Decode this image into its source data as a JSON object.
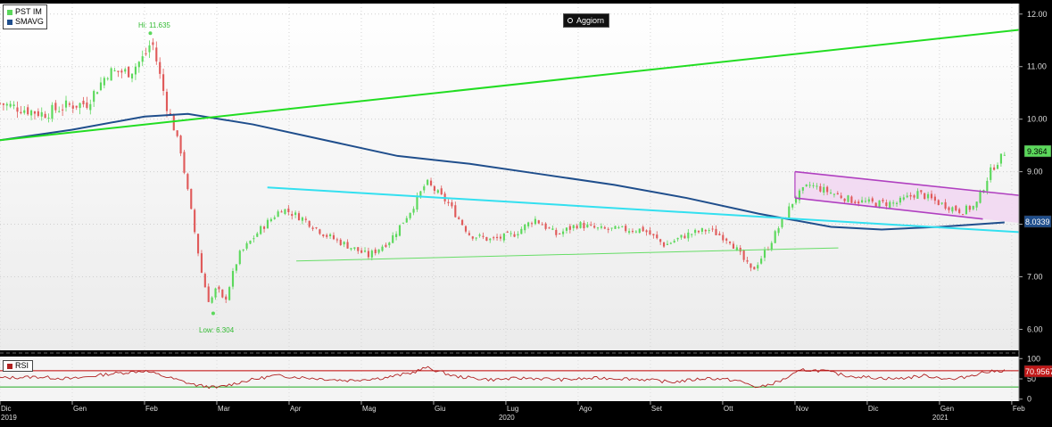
{
  "colors": {
    "up": "#5bd85b",
    "down": "#e05a5a",
    "sma": "#1f4e8c",
    "trend_green": "#22dd22",
    "cyan": "#33e0f0",
    "support": "#66dd66",
    "channel": "#b040c0",
    "channel_fill": "#f1d6f1",
    "rsi": "#b02020",
    "rsi_upper": "#c00000",
    "rsi_lower": "#22aa22"
  },
  "legend": {
    "price_label": "PST IM",
    "sma_label": "SMAVG",
    "rsi_label": "RSI"
  },
  "update_button": {
    "label": "Aggiorn",
    "icon": "circle-icon"
  },
  "annotations": {
    "hi": "Hi: 11.635",
    "low": "Low: 6.304"
  },
  "price_badge": "9.364",
  "sma_badge": "8.0339",
  "rsi_badge": "70.9567",
  "x_axis": {
    "months": [
      {
        "label": "Dic",
        "year": "2019"
      },
      {
        "label": "Gen",
        "year": ""
      },
      {
        "label": "Feb",
        "year": ""
      },
      {
        "label": "Mar",
        "year": ""
      },
      {
        "label": "Apr",
        "year": ""
      },
      {
        "label": "Mag",
        "year": ""
      },
      {
        "label": "Giu",
        "year": ""
      },
      {
        "label": "Lug",
        "year": "2020"
      },
      {
        "label": "Ago",
        "year": ""
      },
      {
        "label": "Set",
        "year": ""
      },
      {
        "label": "Ott",
        "year": ""
      },
      {
        "label": "Nov",
        "year": ""
      },
      {
        "label": "Dic",
        "year": ""
      },
      {
        "label": "Gen",
        "year": "2021"
      },
      {
        "label": "Feb",
        "year": ""
      }
    ]
  },
  "chart_data": [
    {
      "type": "candlestick",
      "title": "",
      "x_unit": "month index (0 = Dic 2019, 14 = Feb 2021)",
      "xlim": [
        0,
        14.1
      ],
      "ylim": [
        5.6,
        12.2
      ],
      "y_ticks": [
        "12.00",
        "11.00",
        "10.00",
        "9.00",
        "8.00",
        "7.00",
        "6.00"
      ],
      "grid": true,
      "legend_position": "top-left",
      "series": [
        {
          "name": "PST IM",
          "type": "candlestick",
          "close_points": [
            [
              0,
              10.3
            ],
            [
              0.3,
              10.2
            ],
            [
              0.6,
              10.1
            ],
            [
              0.9,
              10.25
            ],
            [
              1.2,
              10.3
            ],
            [
              1.5,
              10.9
            ],
            [
              1.8,
              10.9
            ],
            [
              2.0,
              11.2
            ],
            [
              2.1,
              11.5
            ],
            [
              2.3,
              10.3
            ],
            [
              2.5,
              9.4
            ],
            [
              2.7,
              7.8
            ],
            [
              2.8,
              7.0
            ],
            [
              2.9,
              6.5
            ],
            [
              3.0,
              6.8
            ],
            [
              3.1,
              6.5
            ],
            [
              3.3,
              7.4
            ],
            [
              3.6,
              7.9
            ],
            [
              3.9,
              8.3
            ],
            [
              4.2,
              8.1
            ],
            [
              4.5,
              7.8
            ],
            [
              4.8,
              7.6
            ],
            [
              5.1,
              7.4
            ],
            [
              5.4,
              7.7
            ],
            [
              5.7,
              8.3
            ],
            [
              5.9,
              8.8
            ],
            [
              6.2,
              8.4
            ],
            [
              6.5,
              7.8
            ],
            [
              6.8,
              7.7
            ],
            [
              7.1,
              7.8
            ],
            [
              7.4,
              8.1
            ],
            [
              7.7,
              7.8
            ],
            [
              8.0,
              8.0
            ],
            [
              8.3,
              7.9
            ],
            [
              8.6,
              7.9
            ],
            [
              8.9,
              7.9
            ],
            [
              9.2,
              7.6
            ],
            [
              9.5,
              7.8
            ],
            [
              9.8,
              7.9
            ],
            [
              10.1,
              7.7
            ],
            [
              10.4,
              7.1
            ],
            [
              10.6,
              7.5
            ],
            [
              10.8,
              8.0
            ],
            [
              11.0,
              8.5
            ],
            [
              11.2,
              8.75
            ],
            [
              11.5,
              8.6
            ],
            [
              11.8,
              8.45
            ],
            [
              12.1,
              8.4
            ],
            [
              12.4,
              8.4
            ],
            [
              12.7,
              8.6
            ],
            [
              13.0,
              8.4
            ],
            [
              13.3,
              8.25
            ],
            [
              13.5,
              8.35
            ],
            [
              13.7,
              9.0
            ],
            [
              13.9,
              9.364
            ]
          ],
          "high": 11.635,
          "low": 6.304,
          "last": 9.364
        },
        {
          "name": "SMAVG",
          "type": "line",
          "points": [
            [
              0,
              9.6
            ],
            [
              1.0,
              9.8
            ],
            [
              2.0,
              10.05
            ],
            [
              2.6,
              10.1
            ],
            [
              3.5,
              9.9
            ],
            [
              4.5,
              9.6
            ],
            [
              5.5,
              9.3
            ],
            [
              6.5,
              9.15
            ],
            [
              7.5,
              8.95
            ],
            [
              8.5,
              8.75
            ],
            [
              9.5,
              8.5
            ],
            [
              10.5,
              8.2
            ],
            [
              11.5,
              7.95
            ],
            [
              12.2,
              7.9
            ],
            [
              13.0,
              7.95
            ],
            [
              13.9,
              8.0339
            ]
          ],
          "last": 8.0339
        },
        {
          "name": "",
          "type": "trendline",
          "role": "long uptrend",
          "points": [
            [
              0,
              9.6
            ],
            [
              14.1,
              11.7
            ]
          ]
        },
        {
          "name": "",
          "type": "trendline",
          "role": "descending resistance",
          "points": [
            [
              3.7,
              8.7
            ],
            [
              14.1,
              7.85
            ]
          ]
        },
        {
          "name": "",
          "type": "trendline",
          "role": "support",
          "points": [
            [
              4.1,
              7.3
            ],
            [
              11.6,
              7.55
            ]
          ]
        },
        {
          "name": "",
          "type": "channel",
          "role": "descending channel",
          "upper": [
            [
              11.0,
              9.0
            ],
            [
              14.1,
              8.55
            ]
          ],
          "lower": [
            [
              11.0,
              8.5
            ],
            [
              13.6,
              8.1
            ]
          ]
        }
      ]
    },
    {
      "type": "line",
      "title": "",
      "name": "RSI",
      "x_unit": "month index (0 = Dic 2019, 14 = Feb 2021)",
      "xlim": [
        0,
        14.1
      ],
      "ylim": [
        -5,
        105
      ],
      "y_ticks": [
        "100",
        "50",
        "0"
      ],
      "reference_lines": [
        70,
        30
      ],
      "points": [
        [
          0,
          52
        ],
        [
          0.5,
          55
        ],
        [
          1.0,
          50
        ],
        [
          1.5,
          62
        ],
        [
          2.0,
          70
        ],
        [
          2.3,
          55
        ],
        [
          2.7,
          35
        ],
        [
          3.0,
          28
        ],
        [
          3.4,
          45
        ],
        [
          3.8,
          58
        ],
        [
          4.3,
          52
        ],
        [
          4.8,
          46
        ],
        [
          5.3,
          52
        ],
        [
          5.7,
          65
        ],
        [
          5.9,
          78
        ],
        [
          6.3,
          56
        ],
        [
          6.8,
          48
        ],
        [
          7.3,
          52
        ],
        [
          7.8,
          48
        ],
        [
          8.3,
          52
        ],
        [
          8.8,
          50
        ],
        [
          9.3,
          42
        ],
        [
          9.8,
          52
        ],
        [
          10.2,
          46
        ],
        [
          10.5,
          28
        ],
        [
          10.8,
          45
        ],
        [
          11.1,
          72
        ],
        [
          11.4,
          70
        ],
        [
          11.7,
          58
        ],
        [
          12.0,
          54
        ],
        [
          12.4,
          50
        ],
        [
          12.8,
          58
        ],
        [
          13.2,
          48
        ],
        [
          13.6,
          66
        ],
        [
          13.9,
          70.9567
        ]
      ],
      "last": 70.9567
    }
  ]
}
